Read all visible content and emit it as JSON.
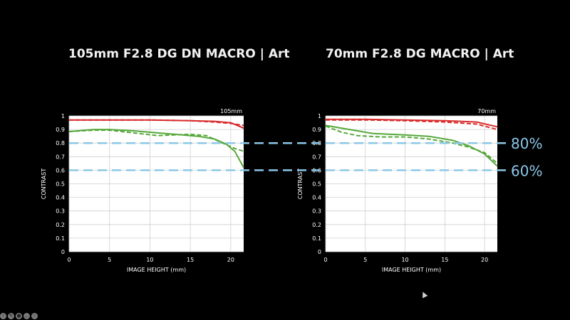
{
  "titles": {
    "left": "105mm F2.8 DG DN MACRO | Art",
    "right": "70mm F2.8 DG MACRO | Art"
  },
  "reference_lines": [
    {
      "value": 0.8,
      "label": "80%"
    },
    {
      "value": 0.6,
      "label": "60%"
    }
  ],
  "colors": {
    "background": "#000000",
    "plot_bg": "#ffffff",
    "grid": "#cfcfcf",
    "red": "#d92b2b",
    "green": "#55a83a",
    "reference": "#8cc8e8"
  },
  "chart_data": [
    {
      "type": "line",
      "title": "105mm F2.8 DG DN MACRO | Art",
      "corner_label": "105mm",
      "xlabel": "IMAGE HEIGHT (mm)",
      "ylabel": "CONTRAST",
      "xlim": [
        0,
        21.6
      ],
      "ylim": [
        0,
        1
      ],
      "xticks": [
        0,
        5,
        10,
        15,
        20
      ],
      "yticks": [
        0,
        0.1,
        0.2,
        0.3,
        0.4,
        0.5,
        0.6,
        0.7,
        0.8,
        0.9,
        1
      ],
      "ytick_labels": [
        "0",
        "0.1",
        "0.2",
        "0.3",
        "0.4",
        "0.5",
        "0.6",
        "0.7",
        "0.8",
        "0.9",
        "1"
      ],
      "grid": true,
      "series": [
        {
          "color": "red",
          "dash": false,
          "points": [
            [
              0,
              0.97
            ],
            [
              5,
              0.97
            ],
            [
              10,
              0.97
            ],
            [
              15,
              0.965
            ],
            [
              18,
              0.96
            ],
            [
              20,
              0.95
            ],
            [
              21.6,
              0.91
            ]
          ]
        },
        {
          "color": "red",
          "dash": true,
          "points": [
            [
              0,
              0.97
            ],
            [
              5,
              0.97
            ],
            [
              10,
              0.97
            ],
            [
              15,
              0.965
            ],
            [
              18,
              0.955
            ],
            [
              20,
              0.945
            ],
            [
              21.6,
              0.93
            ]
          ]
        },
        {
          "color": "green",
          "dash": false,
          "points": [
            [
              0,
              0.885
            ],
            [
              3,
              0.9
            ],
            [
              5,
              0.9
            ],
            [
              8,
              0.89
            ],
            [
              11,
              0.875
            ],
            [
              14,
              0.86
            ],
            [
              16,
              0.85
            ],
            [
              18,
              0.83
            ],
            [
              19.5,
              0.79
            ],
            [
              20.5,
              0.74
            ],
            [
              21.6,
              0.62
            ]
          ]
        },
        {
          "color": "green",
          "dash": true,
          "points": [
            [
              0,
              0.885
            ],
            [
              3,
              0.895
            ],
            [
              5,
              0.895
            ],
            [
              8,
              0.875
            ],
            [
              11,
              0.855
            ],
            [
              13,
              0.86
            ],
            [
              15,
              0.865
            ],
            [
              17,
              0.855
            ],
            [
              19,
              0.8
            ],
            [
              20.5,
              0.76
            ],
            [
              21.6,
              0.74
            ]
          ]
        }
      ]
    },
    {
      "type": "line",
      "title": "70mm F2.8 DG MACRO | Art",
      "corner_label": "70mm",
      "xlabel": "IMAGE HEIGHT (mm)",
      "ylabel": "CONTRAST",
      "xlim": [
        0,
        21.6
      ],
      "ylim": [
        0,
        1
      ],
      "xticks": [
        0,
        5,
        10,
        15,
        20
      ],
      "yticks": [
        0,
        0.1,
        0.2,
        0.3,
        0.4,
        0.5,
        0.6,
        0.7,
        0.8,
        0.9,
        1
      ],
      "ytick_labels": [
        "0",
        "0.1",
        "0.2",
        "0.3",
        "0.4",
        "0.5",
        "0.6",
        "0.7",
        "0.8",
        "0.9",
        "1"
      ],
      "grid": true,
      "series": [
        {
          "color": "red",
          "dash": false,
          "points": [
            [
              0,
              0.975
            ],
            [
              5,
              0.975
            ],
            [
              10,
              0.97
            ],
            [
              15,
              0.965
            ],
            [
              19,
              0.955
            ],
            [
              21.6,
              0.92
            ]
          ]
        },
        {
          "color": "red",
          "dash": true,
          "points": [
            [
              0,
              0.97
            ],
            [
              5,
              0.97
            ],
            [
              10,
              0.965
            ],
            [
              15,
              0.955
            ],
            [
              19,
              0.94
            ],
            [
              21.6,
              0.9
            ]
          ]
        },
        {
          "color": "green",
          "dash": false,
          "points": [
            [
              0,
              0.93
            ],
            [
              3,
              0.9
            ],
            [
              6,
              0.87
            ],
            [
              10,
              0.86
            ],
            [
              13,
              0.85
            ],
            [
              16,
              0.82
            ],
            [
              18,
              0.78
            ],
            [
              20,
              0.72
            ],
            [
              21.6,
              0.63
            ]
          ]
        },
        {
          "color": "green",
          "dash": true,
          "points": [
            [
              0,
              0.925
            ],
            [
              2,
              0.88
            ],
            [
              4,
              0.855
            ],
            [
              7,
              0.845
            ],
            [
              10,
              0.845
            ],
            [
              13,
              0.83
            ],
            [
              16,
              0.8
            ],
            [
              18,
              0.77
            ],
            [
              20,
              0.73
            ],
            [
              21.6,
              0.65
            ]
          ]
        }
      ]
    }
  ]
}
